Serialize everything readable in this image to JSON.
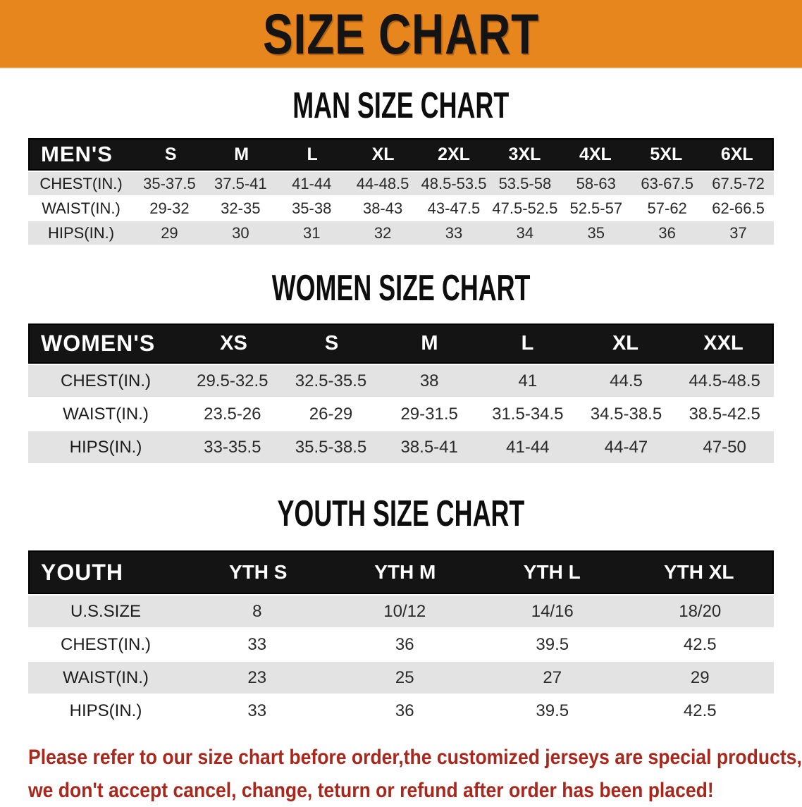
{
  "banner": {
    "title": "SIZE CHART"
  },
  "colors": {
    "banner_bg": "#E8861E",
    "table_header_bg": "#141414",
    "stripe_row_bg": "#E3E3E3",
    "disclaimer_text": "#A8281E"
  },
  "sections": [
    {
      "id": "men",
      "heading": "MAN SIZE CHART",
      "header_label": "MEN'S",
      "columns": [
        "S",
        "M",
        "L",
        "XL",
        "2XL",
        "3XL",
        "4XL",
        "5XL",
        "6XL"
      ],
      "rows": [
        {
          "label": "CHEST(IN.)",
          "values": [
            "35-37.5",
            "37.5-41",
            "41-44",
            "44-48.5",
            "48.5-53.5",
            "53.5-58",
            "58-63",
            "63-67.5",
            "67.5-72"
          ]
        },
        {
          "label": "WAIST(IN.)",
          "values": [
            "29-32",
            "32-35",
            "35-38",
            "38-43",
            "43-47.5",
            "47.5-52.5",
            "52.5-57",
            "57-62",
            "62-66.5"
          ]
        },
        {
          "label": "HIPS(IN.)",
          "values": [
            "29",
            "30",
            "31",
            "32",
            "33",
            "34",
            "35",
            "36",
            "37"
          ]
        }
      ]
    },
    {
      "id": "women",
      "heading": "WOMEN SIZE CHART",
      "header_label": "WOMEN'S",
      "columns": [
        "XS",
        "S",
        "M",
        "L",
        "XL",
        "XXL"
      ],
      "rows": [
        {
          "label": "CHEST(IN.)",
          "values": [
            "29.5-32.5",
            "32.5-35.5",
            "38",
            "41",
            "44.5",
            "44.5-48.5"
          ]
        },
        {
          "label": "WAIST(IN.)",
          "values": [
            "23.5-26",
            "26-29",
            "29-31.5",
            "31.5-34.5",
            "34.5-38.5",
            "38.5-42.5"
          ]
        },
        {
          "label": "HIPS(IN.)",
          "values": [
            "33-35.5",
            "35.5-38.5",
            "38.5-41",
            "41-44",
            "44-47",
            "47-50"
          ]
        }
      ]
    },
    {
      "id": "youth",
      "heading": "YOUTH SIZE CHART",
      "header_label": "YOUTH",
      "columns": [
        "YTH S",
        "YTH M",
        "YTH L",
        "YTH XL"
      ],
      "rows": [
        {
          "label": "U.S.SIZE",
          "values": [
            "8",
            "10/12",
            "14/16",
            "18/20"
          ]
        },
        {
          "label": "CHEST(IN.)",
          "values": [
            "33",
            "36",
            "39.5",
            "42.5"
          ]
        },
        {
          "label": "WAIST(IN.)",
          "values": [
            "23",
            "25",
            "27",
            "29"
          ]
        },
        {
          "label": "HIPS(IN.)",
          "values": [
            "33",
            "36",
            "39.5",
            "42.5"
          ]
        }
      ]
    }
  ],
  "disclaimer": {
    "line1": "Please refer to our size chart before order,the customized jerseys are special products,",
    "line2": "we don't accept cancel, change, teturn or refund after order has been placed!"
  }
}
